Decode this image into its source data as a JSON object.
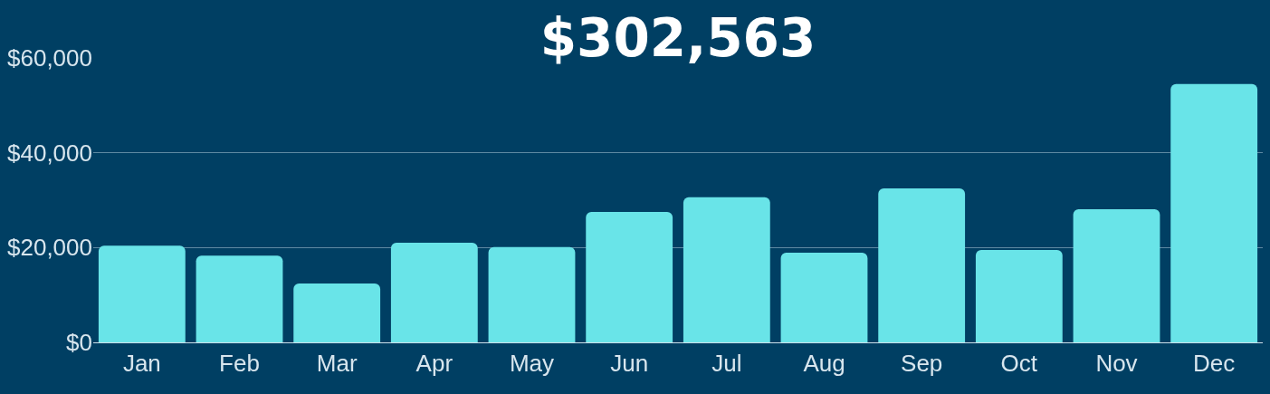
{
  "chart_data": {
    "type": "bar",
    "title": "$302,563",
    "categories": [
      "Jan",
      "Feb",
      "Mar",
      "Apr",
      "May",
      "Jun",
      "Jul",
      "Aug",
      "Sep",
      "Oct",
      "Nov",
      "Dec"
    ],
    "values": [
      20400,
      18300,
      12400,
      21000,
      20100,
      27500,
      30600,
      18900,
      32500,
      19500,
      28100,
      54500
    ],
    "color": "#69e4e8",
    "ylim": [
      0,
      60000
    ],
    "yticks": [
      {
        "value": 0,
        "label": "$0"
      },
      {
        "value": 20000,
        "label": "$20,000"
      },
      {
        "value": 40000,
        "label": "$40,000"
      },
      {
        "value": 60000,
        "label": "$60,000"
      }
    ],
    "grid": "y"
  }
}
